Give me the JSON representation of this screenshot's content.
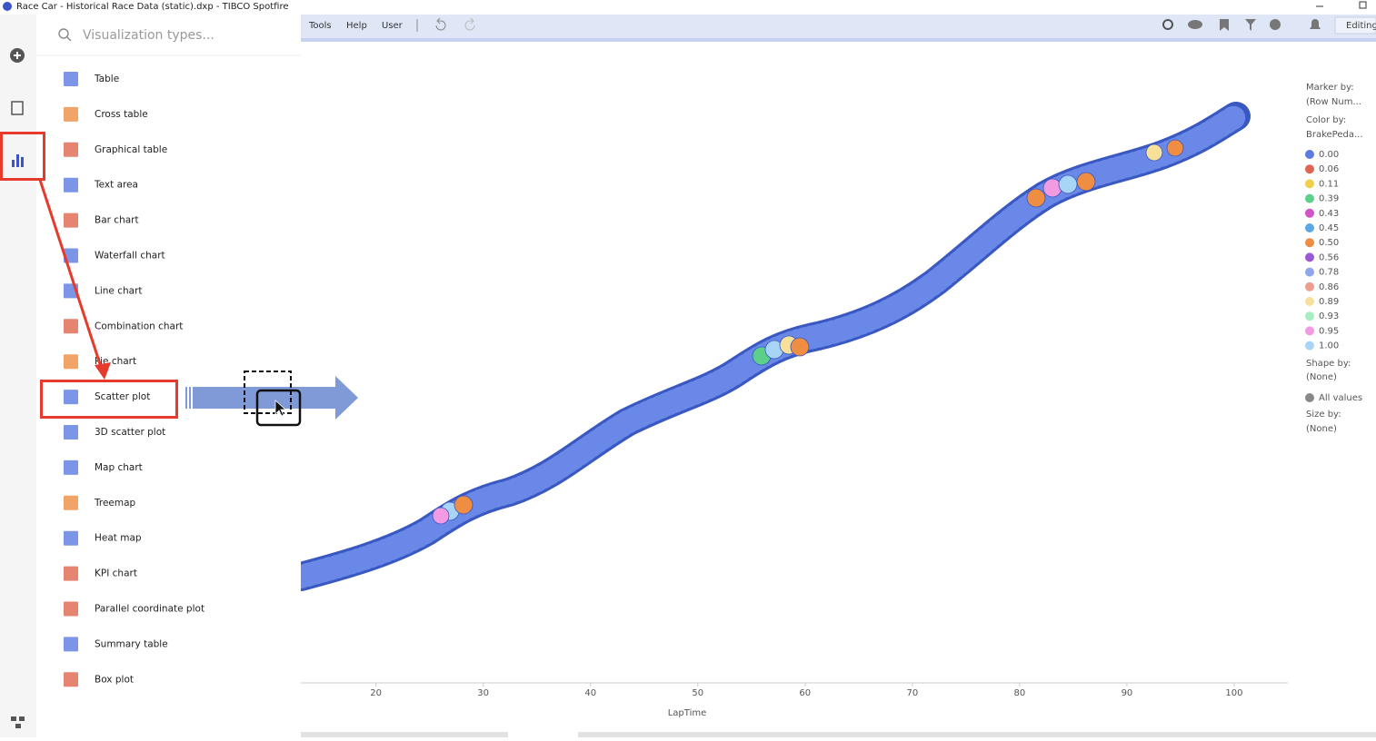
{
  "window": {
    "title": "Race Car - Historical Race Data (static).dxp - TIBCO Spotfire"
  },
  "toolbar": {
    "menus": [
      "Tools",
      "Help",
      "User"
    ],
    "mode": "Editing"
  },
  "panel": {
    "search_placeholder": "Visualization types...",
    "items": [
      "Table",
      "Cross table",
      "Graphical table",
      "Text area",
      "Bar chart",
      "Waterfall chart",
      "Line chart",
      "Combination chart",
      "Pie chart",
      "Scatter plot",
      "3D scatter plot",
      "Map chart",
      "Treemap",
      "Heat map",
      "KPI chart",
      "Parallel coordinate plot",
      "Summary table",
      "Box plot"
    ]
  },
  "chart_data": {
    "type": "scatter",
    "x_label": "LapTime",
    "xlim": [
      13,
      105
    ],
    "xticks": [
      20,
      30,
      40,
      50,
      60,
      70,
      80,
      90,
      100
    ]
  },
  "legend": {
    "marker_by_label": "Marker by:",
    "marker_by": "(Row Num...",
    "color_by_label": "Color by:",
    "color_by": "BrakePeda...",
    "colors": [
      {
        "label": "0.00",
        "color": "#5b7be0"
      },
      {
        "label": "0.06",
        "color": "#e0654f"
      },
      {
        "label": "0.11",
        "color": "#f2cf4a"
      },
      {
        "label": "0.39",
        "color": "#5ccf8a"
      },
      {
        "label": "0.43",
        "color": "#d254c8"
      },
      {
        "label": "0.45",
        "color": "#5ba8e6"
      },
      {
        "label": "0.50",
        "color": "#ef8d42"
      },
      {
        "label": "0.56",
        "color": "#9b59d6"
      },
      {
        "label": "0.78",
        "color": "#8fa6ef"
      },
      {
        "label": "0.86",
        "color": "#ef9d8f"
      },
      {
        "label": "0.89",
        "color": "#f7e09a"
      },
      {
        "label": "0.93",
        "color": "#a6eec0"
      },
      {
        "label": "0.95",
        "color": "#f29be3"
      },
      {
        "label": "1.00",
        "color": "#a8d4f5"
      }
    ],
    "shape_by_label": "Shape by:",
    "shape_by": "(None)",
    "shape_all": "All values",
    "size_by_label": "Size by:",
    "size_by": "(None)"
  }
}
